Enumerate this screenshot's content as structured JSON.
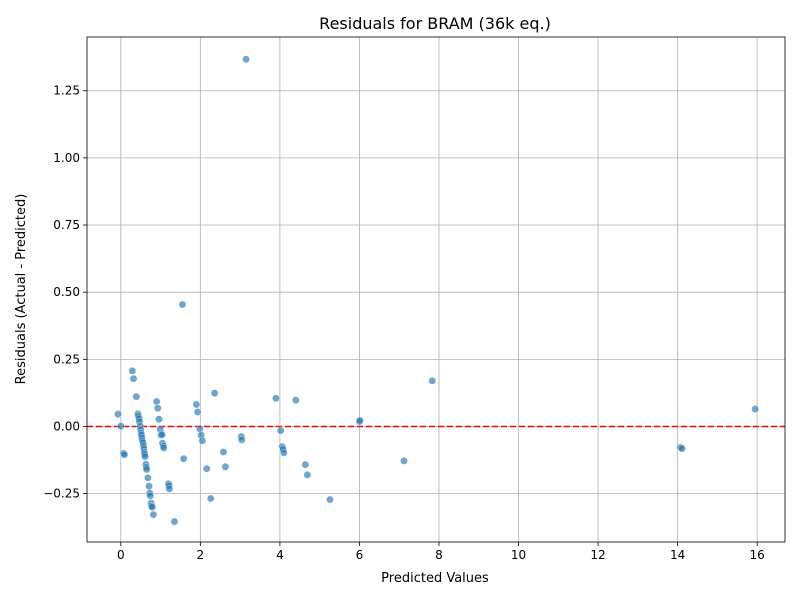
{
  "chart_data": {
    "type": "scatter",
    "title": "Residuals for BRAM (36k eq.)",
    "xlabel": "Predicted Values",
    "ylabel": "Residuals (Actual - Predicted)",
    "xlim": [
      -0.85,
      16.7
    ],
    "ylim": [
      -0.43,
      1.45
    ],
    "xticks": [
      0,
      2,
      4,
      6,
      8,
      10,
      12,
      14,
      16
    ],
    "xtick_labels": [
      "0",
      "2",
      "4",
      "6",
      "8",
      "10",
      "12",
      "14",
      "16"
    ],
    "yticks": [
      -0.25,
      0.0,
      0.25,
      0.5,
      0.75,
      1.0,
      1.25
    ],
    "ytick_labels": [
      "−0.25",
      "0.00",
      "0.25",
      "0.50",
      "0.75",
      "1.00",
      "1.25"
    ],
    "grid": true,
    "reference_line": {
      "y": 0,
      "color": "#ff0000",
      "style": "dashed"
    },
    "point_color": "#1f77b4",
    "points": [
      {
        "x": -0.07,
        "y": 0.046
      },
      {
        "x": 0.0,
        "y": 0.001
      },
      {
        "x": 0.07,
        "y": -0.1
      },
      {
        "x": 0.09,
        "y": -0.105
      },
      {
        "x": 0.29,
        "y": 0.207
      },
      {
        "x": 0.32,
        "y": 0.178
      },
      {
        "x": 0.39,
        "y": 0.111
      },
      {
        "x": 0.43,
        "y": 0.047
      },
      {
        "x": 0.44,
        "y": 0.038
      },
      {
        "x": 0.46,
        "y": 0.029
      },
      {
        "x": 0.47,
        "y": 0.018
      },
      {
        "x": 0.49,
        "y": 0.001
      },
      {
        "x": 0.5,
        "y": -0.012
      },
      {
        "x": 0.51,
        "y": -0.025
      },
      {
        "x": 0.52,
        "y": -0.032
      },
      {
        "x": 0.53,
        "y": -0.042
      },
      {
        "x": 0.54,
        "y": -0.052
      },
      {
        "x": 0.56,
        "y": -0.06
      },
      {
        "x": 0.57,
        "y": -0.072
      },
      {
        "x": 0.58,
        "y": -0.082
      },
      {
        "x": 0.59,
        "y": -0.095
      },
      {
        "x": 0.6,
        "y": -0.103
      },
      {
        "x": 0.61,
        "y": -0.112
      },
      {
        "x": 0.63,
        "y": -0.141
      },
      {
        "x": 0.64,
        "y": -0.152
      },
      {
        "x": 0.65,
        "y": -0.16
      },
      {
        "x": 0.68,
        "y": -0.191
      },
      {
        "x": 0.71,
        "y": -0.222
      },
      {
        "x": 0.73,
        "y": -0.248
      },
      {
        "x": 0.74,
        "y": -0.258
      },
      {
        "x": 0.76,
        "y": -0.285
      },
      {
        "x": 0.77,
        "y": -0.296
      },
      {
        "x": 0.79,
        "y": -0.3
      },
      {
        "x": 0.82,
        "y": -0.328
      },
      {
        "x": 0.9,
        "y": 0.093
      },
      {
        "x": 0.93,
        "y": 0.068
      },
      {
        "x": 0.96,
        "y": 0.027
      },
      {
        "x": 0.99,
        "y": -0.01
      },
      {
        "x": 1.01,
        "y": -0.032
      },
      {
        "x": 1.04,
        "y": -0.03
      },
      {
        "x": 1.05,
        "y": -0.062
      },
      {
        "x": 1.07,
        "y": -0.072
      },
      {
        "x": 1.08,
        "y": -0.08
      },
      {
        "x": 1.2,
        "y": -0.213
      },
      {
        "x": 1.21,
        "y": -0.22
      },
      {
        "x": 1.22,
        "y": -0.232
      },
      {
        "x": 1.35,
        "y": -0.354
      },
      {
        "x": 1.55,
        "y": 0.454
      },
      {
        "x": 1.58,
        "y": -0.12
      },
      {
        "x": 1.9,
        "y": 0.082
      },
      {
        "x": 1.93,
        "y": 0.054
      },
      {
        "x": 1.99,
        "y": -0.009
      },
      {
        "x": 2.02,
        "y": -0.032
      },
      {
        "x": 2.05,
        "y": -0.053
      },
      {
        "x": 2.16,
        "y": -0.157
      },
      {
        "x": 2.26,
        "y": -0.268
      },
      {
        "x": 2.36,
        "y": 0.124
      },
      {
        "x": 2.58,
        "y": -0.095
      },
      {
        "x": 2.63,
        "y": -0.15
      },
      {
        "x": 3.03,
        "y": -0.038
      },
      {
        "x": 3.04,
        "y": -0.05
      },
      {
        "x": 3.15,
        "y": 1.367
      },
      {
        "x": 3.9,
        "y": 0.105
      },
      {
        "x": 4.02,
        "y": -0.015
      },
      {
        "x": 4.06,
        "y": -0.075
      },
      {
        "x": 4.08,
        "y": -0.085
      },
      {
        "x": 4.1,
        "y": -0.098
      },
      {
        "x": 4.4,
        "y": 0.098
      },
      {
        "x": 4.64,
        "y": -0.142
      },
      {
        "x": 4.69,
        "y": -0.18
      },
      {
        "x": 5.26,
        "y": -0.272
      },
      {
        "x": 6.0,
        "y": 0.018
      },
      {
        "x": 6.01,
        "y": 0.022
      },
      {
        "x": 7.12,
        "y": -0.128
      },
      {
        "x": 7.83,
        "y": 0.17
      },
      {
        "x": 14.07,
        "y": -0.078
      },
      {
        "x": 14.11,
        "y": -0.082
      },
      {
        "x": 15.95,
        "y": 0.065
      }
    ]
  }
}
